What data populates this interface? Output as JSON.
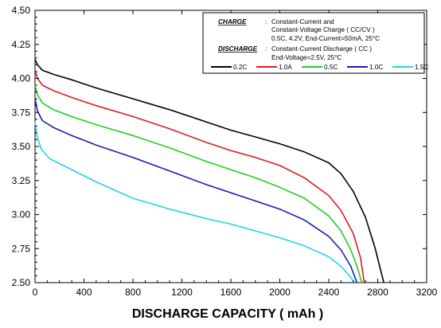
{
  "chart_data": {
    "type": "line",
    "xlabel": "DISCHARGE CAPACITY ( mAh )",
    "ylabel": "",
    "xlim": [
      0,
      3200
    ],
    "ylim": [
      2.5,
      4.5
    ],
    "x_ticks": [
      "0",
      "400",
      "800",
      "1200",
      "1600",
      "2000",
      "2400",
      "2800",
      "3200"
    ],
    "y_ticks": [
      "2.50",
      "2.75",
      "3.00",
      "3.25",
      "3.50",
      "3.75",
      "4.00",
      "4.25",
      "4.50"
    ],
    "grid": false,
    "legend_position": "top-right",
    "annotation": {
      "charge_label": "CHARGE",
      "charge_sep": ":",
      "charge_line1": "Constant-Current and",
      "charge_line2": "Constant-Voltage Charge ( CC/CV )",
      "charge_line3": "0.5C, 4.2V, End-Current=50mA, 25°C",
      "discharge_label": "DISCHARGE",
      "discharge_sep": ":",
      "discharge_line1": "Constant-Current Discharge ( CC )",
      "discharge_line2": "End-Voltage=2.5V, 25°C"
    },
    "series": [
      {
        "name": "0.2C",
        "color": "#000000",
        "points": [
          [
            0,
            4.14
          ],
          [
            20,
            4.1
          ],
          [
            60,
            4.06
          ],
          [
            150,
            4.03
          ],
          [
            300,
            3.99
          ],
          [
            500,
            3.93
          ],
          [
            800,
            3.85
          ],
          [
            1100,
            3.77
          ],
          [
            1400,
            3.68
          ],
          [
            1600,
            3.62
          ],
          [
            1800,
            3.57
          ],
          [
            2000,
            3.52
          ],
          [
            2200,
            3.46
          ],
          [
            2400,
            3.38
          ],
          [
            2500,
            3.3
          ],
          [
            2600,
            3.17
          ],
          [
            2700,
            2.98
          ],
          [
            2780,
            2.75
          ],
          [
            2830,
            2.57
          ],
          [
            2850,
            2.5
          ]
        ]
      },
      {
        "name": "1.0A",
        "color": "#e11b1b",
        "points": [
          [
            0,
            4.06
          ],
          [
            20,
            4.0
          ],
          [
            60,
            3.95
          ],
          [
            150,
            3.91
          ],
          [
            300,
            3.86
          ],
          [
            500,
            3.8
          ],
          [
            800,
            3.72
          ],
          [
            1100,
            3.63
          ],
          [
            1400,
            3.53
          ],
          [
            1600,
            3.47
          ],
          [
            1800,
            3.42
          ],
          [
            2000,
            3.36
          ],
          [
            2200,
            3.27
          ],
          [
            2400,
            3.14
          ],
          [
            2500,
            3.03
          ],
          [
            2600,
            2.86
          ],
          [
            2660,
            2.68
          ],
          [
            2690,
            2.5
          ]
        ]
      },
      {
        "name": "0.5C",
        "color": "#22cc22",
        "points": [
          [
            0,
            3.95
          ],
          [
            20,
            3.88
          ],
          [
            60,
            3.82
          ],
          [
            150,
            3.77
          ],
          [
            300,
            3.72
          ],
          [
            500,
            3.66
          ],
          [
            800,
            3.58
          ],
          [
            1100,
            3.49
          ],
          [
            1400,
            3.39
          ],
          [
            1600,
            3.33
          ],
          [
            1800,
            3.27
          ],
          [
            2000,
            3.2
          ],
          [
            2200,
            3.12
          ],
          [
            2400,
            2.99
          ],
          [
            2500,
            2.88
          ],
          [
            2580,
            2.74
          ],
          [
            2630,
            2.62
          ],
          [
            2670,
            2.5
          ]
        ]
      },
      {
        "name": "1.0C",
        "color": "#1b1ba8",
        "points": [
          [
            0,
            3.85
          ],
          [
            20,
            3.76
          ],
          [
            60,
            3.69
          ],
          [
            150,
            3.64
          ],
          [
            300,
            3.58
          ],
          [
            500,
            3.51
          ],
          [
            800,
            3.42
          ],
          [
            1100,
            3.32
          ],
          [
            1400,
            3.22
          ],
          [
            1600,
            3.16
          ],
          [
            1800,
            3.1
          ],
          [
            2000,
            3.04
          ],
          [
            2200,
            2.96
          ],
          [
            2400,
            2.84
          ],
          [
            2500,
            2.74
          ],
          [
            2580,
            2.62
          ],
          [
            2630,
            2.5
          ]
        ]
      },
      {
        "name": "1.5C",
        "color": "#22d4e6",
        "points": [
          [
            0,
            3.68
          ],
          [
            15,
            3.58
          ],
          [
            50,
            3.48
          ],
          [
            120,
            3.41
          ],
          [
            300,
            3.33
          ],
          [
            500,
            3.24
          ],
          [
            800,
            3.12
          ],
          [
            1100,
            3.04
          ],
          [
            1400,
            2.97
          ],
          [
            1600,
            2.93
          ],
          [
            1800,
            2.88
          ],
          [
            2000,
            2.83
          ],
          [
            2200,
            2.77
          ],
          [
            2400,
            2.69
          ],
          [
            2500,
            2.62
          ],
          [
            2570,
            2.55
          ],
          [
            2610,
            2.5
          ]
        ]
      }
    ]
  }
}
